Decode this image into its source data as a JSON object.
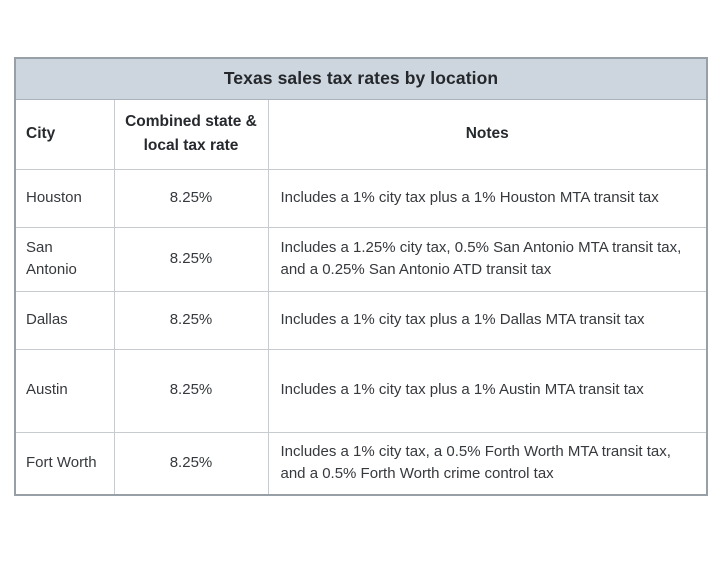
{
  "chart_data": {
    "type": "table",
    "title": "Texas sales tax rates by location",
    "columns": [
      "City",
      "Combined state & local tax rate",
      "Notes"
    ],
    "rows": [
      [
        "Houston",
        "8.25%",
        "Includes a 1% city tax plus a 1% Houston MTA transit tax"
      ],
      [
        "San Antonio",
        "8.25%",
        "Includes a 1.25% city tax, 0.5% San Antonio MTA transit tax, and a 0.25% San Antonio ATD transit tax"
      ],
      [
        "Dallas",
        "8.25%",
        "Includes a 1% city tax plus a 1% Dallas MTA transit tax"
      ],
      [
        "Austin",
        "8.25%",
        "Includes a 1% city tax plus a 1% Austin MTA transit tax"
      ],
      [
        "Fort Worth",
        "8.25%",
        "Includes a 1% city tax, a 0.5% Forth Worth MTA transit tax, and a 0.5% Forth Worth crime control tax"
      ]
    ],
    "layout_hints": {
      "title_position": "top-banner",
      "rate_column_alignment": "center",
      "grid": "on"
    }
  },
  "colors": {
    "title_background": "#cdd6de",
    "outer_border": "#97a0a7",
    "inner_border": "#c7cbcf",
    "text": "#36393d",
    "page_background": "#ffffff"
  }
}
